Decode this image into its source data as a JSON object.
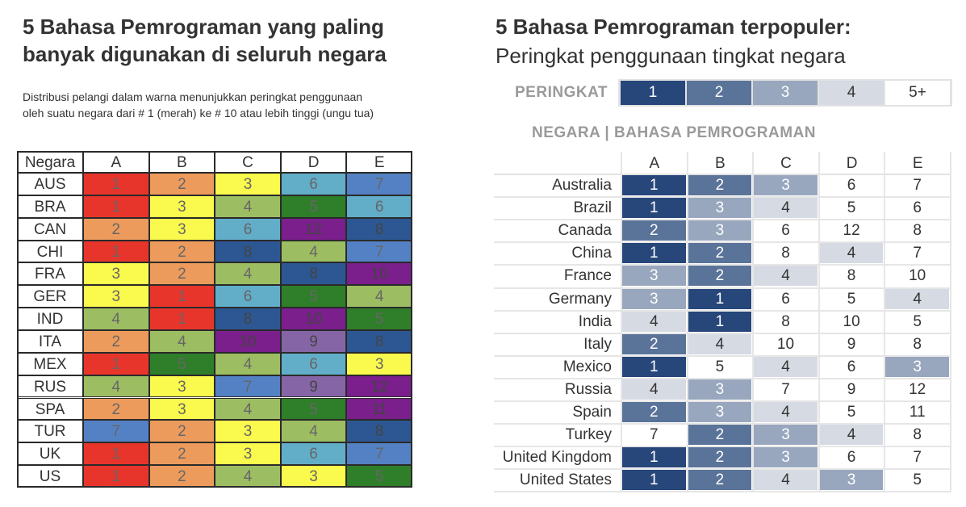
{
  "left": {
    "title_line1": "5 Bahasa Pemrograman yang paling",
    "title_line2": "banyak digunakan di seluruh negara",
    "subtitle_line1": "Distribusi pelangi dalam warna menunjukkan peringkat penggunaan",
    "subtitle_line2": "oleh suatu negara dari # 1 (merah) ke # 10 atau lebih tinggi (ungu tua)",
    "header_label": "Negara"
  },
  "right": {
    "title": "5 Bahasa Pemrograman terpopuler:",
    "subtitle": "Peringkat penggunaan tingkat negara",
    "legend_label": "PERINGKAT",
    "legend_items": [
      "1",
      "2",
      "3",
      "4",
      "5+"
    ],
    "header_label": "NEGARA |   BAHASA PEMROGRAMAN"
  },
  "colors": {
    "rainbow": {
      "1": "#e8352b",
      "2": "#ec9b5c",
      "3": "#faf94d",
      "4": "#9dbd62",
      "5": "#2f7e2a",
      "6": "#62adc8",
      "7": "#5481c3",
      "8": "#2d5793",
      "9": "#8665a6",
      "10": "#7a1f8c",
      "11": "#7a1f8c",
      "12": "#7a1f8c"
    },
    "blues": {
      "1": "#27467a",
      "2": "#5a7399",
      "3": "#98a7be",
      "4": "#d5dae3",
      "5": "#ffffff"
    }
  },
  "chart_data": [
    {
      "type": "heatmap",
      "title": "5 Bahasa Pemrograman yang paling banyak digunakan di seluruh negara",
      "columns": [
        "A",
        "B",
        "C",
        "D",
        "E"
      ],
      "rows": [
        "AUS",
        "BRA",
        "CAN",
        "CHI",
        "FRA",
        "GER",
        "IND",
        "ITA",
        "MEX",
        "RUS",
        "SPA",
        "TUR",
        "UK",
        "US"
      ],
      "values": [
        [
          1,
          2,
          3,
          6,
          7
        ],
        [
          1,
          3,
          4,
          5,
          6
        ],
        [
          2,
          3,
          6,
          12,
          8
        ],
        [
          1,
          2,
          8,
          4,
          7
        ],
        [
          3,
          2,
          4,
          8,
          10
        ],
        [
          3,
          1,
          6,
          5,
          4
        ],
        [
          4,
          1,
          8,
          10,
          5
        ],
        [
          2,
          4,
          10,
          9,
          8
        ],
        [
          1,
          5,
          4,
          6,
          3
        ],
        [
          4,
          3,
          7,
          9,
          12
        ],
        [
          2,
          3,
          4,
          5,
          11
        ],
        [
          7,
          2,
          3,
          4,
          8
        ],
        [
          1,
          2,
          3,
          6,
          7
        ],
        [
          1,
          2,
          4,
          3,
          5
        ]
      ]
    },
    {
      "type": "heatmap",
      "title": "5 Bahasa Pemrograman terpopuler: Peringkat penggunaan tingkat negara",
      "columns": [
        "A",
        "B",
        "C",
        "D",
        "E"
      ],
      "rows": [
        "Australia",
        "Brazil",
        "Canada",
        "China",
        "France",
        "Germany",
        "India",
        "Italy",
        "Mexico",
        "Russia",
        "Spain",
        "Turkey",
        "United Kingdom",
        "United States"
      ],
      "values": [
        [
          1,
          2,
          3,
          6,
          7
        ],
        [
          1,
          3,
          4,
          5,
          6
        ],
        [
          2,
          3,
          6,
          12,
          8
        ],
        [
          1,
          2,
          8,
          4,
          7
        ],
        [
          3,
          2,
          4,
          8,
          10
        ],
        [
          3,
          1,
          6,
          5,
          4
        ],
        [
          4,
          1,
          8,
          10,
          5
        ],
        [
          2,
          4,
          10,
          9,
          8
        ],
        [
          1,
          5,
          4,
          6,
          3
        ],
        [
          4,
          3,
          7,
          9,
          12
        ],
        [
          2,
          3,
          4,
          5,
          11
        ],
        [
          7,
          2,
          3,
          4,
          8
        ],
        [
          1,
          2,
          3,
          6,
          7
        ],
        [
          1,
          2,
          4,
          3,
          5
        ]
      ]
    }
  ]
}
